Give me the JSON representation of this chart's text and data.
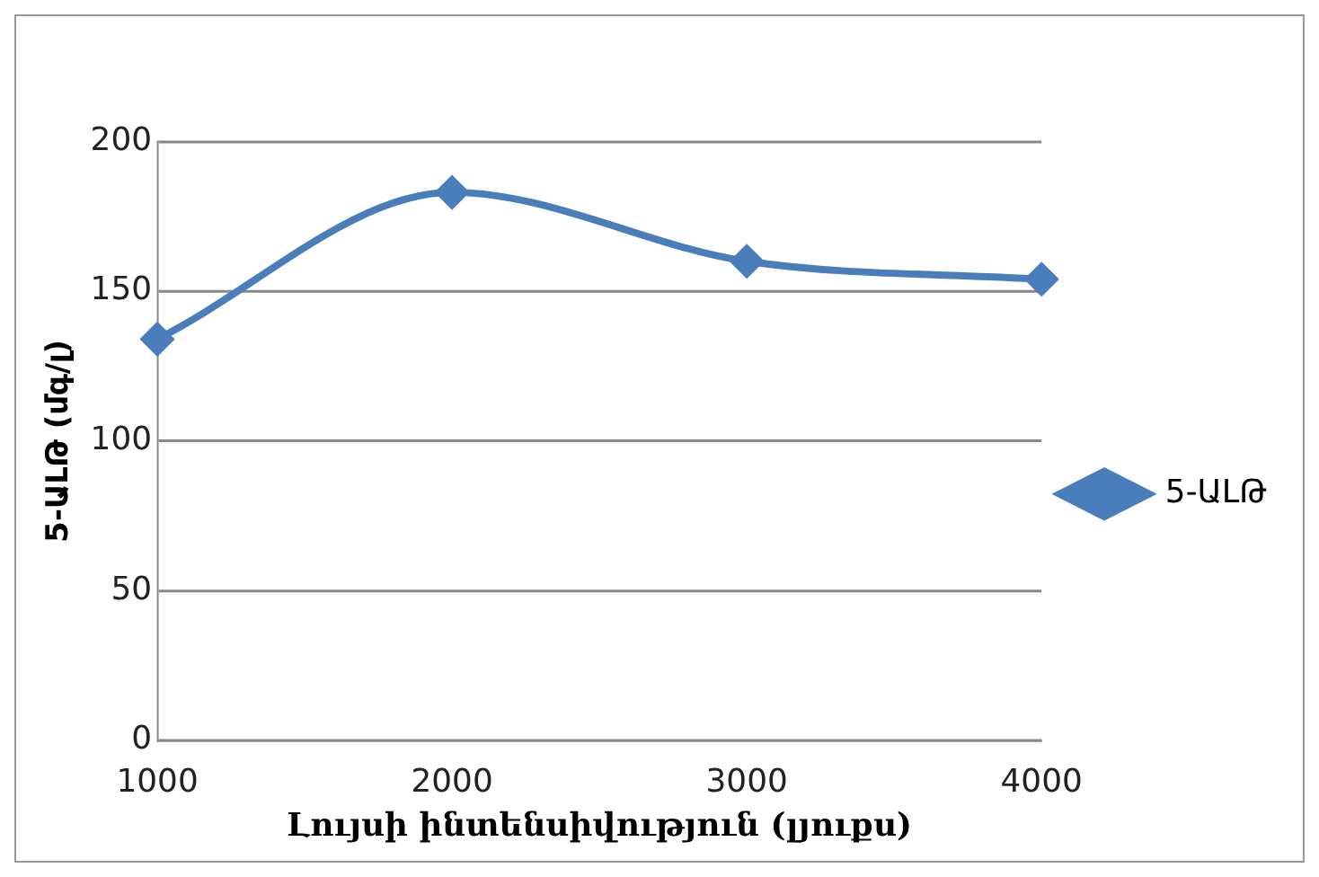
{
  "chart_data": {
    "type": "line",
    "xlabel": "Լույսի ինտենսիվություն (լյուքս)",
    "ylabel": "5-ԱԼԹ (մգ/լ)",
    "categories": [
      "1000",
      "2000",
      "3000",
      "4000"
    ],
    "series": [
      {
        "name": "5-ԱԼԹ",
        "color": "#4a7ebb",
        "values": [
          134,
          183,
          160,
          154
        ]
      }
    ],
    "ylim": [
      0,
      200
    ],
    "yticks": [
      0,
      50,
      100,
      150,
      200
    ],
    "grid": "y",
    "legend": "right",
    "marker": "diamond",
    "line_style": "solid"
  }
}
